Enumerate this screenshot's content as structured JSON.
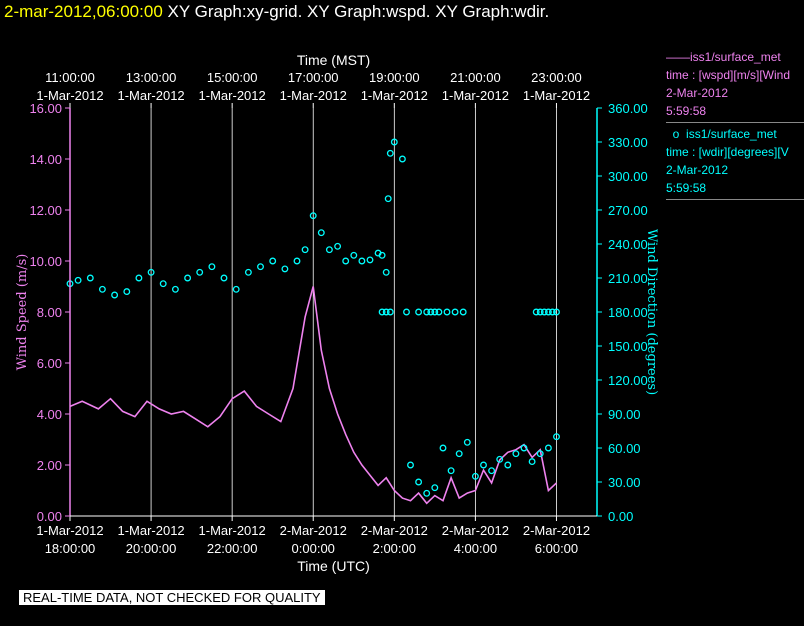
{
  "header": {
    "timestamp": "2-mar-2012,06:00:00",
    "graphs": "XY Graph:xy-grid.  XY Graph:wspd.  XY Graph:wdir."
  },
  "legend": {
    "wspd": {
      "marker": "——",
      "source": "iss1/surface_met",
      "var": "time : [wspd][m/s][Wind",
      "date": "2-Mar-2012",
      "time": "5:59:58"
    },
    "wdir": {
      "marker": "o",
      "source": "iss1/surface_met",
      "var": "time : [wdir][degrees][V",
      "date": "2-Mar-2012",
      "time": "5:59:58"
    }
  },
  "quality_note": "REAL-TIME DATA, NOT CHECKED FOR QUALITY",
  "colors": {
    "wspd": "#ee82ee",
    "wdir": "#00ffff",
    "grid": "#ffffff",
    "axes": "#ffffff"
  },
  "chart_data": {
    "type": "line",
    "x_bottom_label": "Time (UTC)",
    "x_top_label": "Time (MST)",
    "xlim_hours_utc": [
      18,
      31
    ],
    "bottom_ticks": [
      {
        "h": 18,
        "date": "1-Mar-2012",
        "time": "18:00:00"
      },
      {
        "h": 20,
        "date": "1-Mar-2012",
        "time": "20:00:00"
      },
      {
        "h": 22,
        "date": "1-Mar-2012",
        "time": "22:00:00"
      },
      {
        "h": 24,
        "date": "2-Mar-2012",
        "time": "0:00:00"
      },
      {
        "h": 26,
        "date": "2-Mar-2012",
        "time": "2:00:00"
      },
      {
        "h": 28,
        "date": "2-Mar-2012",
        "time": "4:00:00"
      },
      {
        "h": 30,
        "date": "2-Mar-2012",
        "time": "6:00:00"
      }
    ],
    "top_ticks": [
      {
        "h": 18,
        "time": "11:00:00",
        "date": "1-Mar-2012"
      },
      {
        "h": 20,
        "time": "13:00:00",
        "date": "1-Mar-2012"
      },
      {
        "h": 22,
        "time": "15:00:00",
        "date": "1-Mar-2012"
      },
      {
        "h": 24,
        "time": "17:00:00",
        "date": "1-Mar-2012"
      },
      {
        "h": 26,
        "time": "19:00:00",
        "date": "1-Mar-2012"
      },
      {
        "h": 28,
        "time": "21:00:00",
        "date": "1-Mar-2012"
      },
      {
        "h": 30,
        "time": "23:00:00",
        "date": "1-Mar-2012"
      }
    ],
    "y_left": {
      "label": "Wind Speed (m/s)",
      "lim": [
        0,
        16
      ],
      "ticks": [
        "0.00",
        "2.00",
        "4.00",
        "6.00",
        "8.00",
        "10.00",
        "12.00",
        "14.00",
        "16.00"
      ]
    },
    "y_right": {
      "label": "Wind Direction (degrees)",
      "lim": [
        0,
        360
      ],
      "ticks": [
        "0.00",
        "30.00",
        "60.00",
        "90.00",
        "120.00",
        "150.00",
        "180.00",
        "210.00",
        "240.00",
        "270.00",
        "300.00",
        "330.00",
        "360.00"
      ]
    },
    "grid": "vertical",
    "series": [
      {
        "name": "wspd",
        "style": "line",
        "x": [
          17.9,
          18.3,
          18.7,
          19.0,
          19.3,
          19.6,
          19.9,
          20.2,
          20.5,
          20.8,
          21.1,
          21.4,
          21.7,
          22.0,
          22.3,
          22.6,
          22.9,
          23.2,
          23.5,
          23.8,
          24.0,
          24.2,
          24.4,
          24.6,
          24.8,
          25.0,
          25.2,
          25.4,
          25.6,
          25.8,
          26.0,
          26.2,
          26.4,
          26.6,
          26.8,
          27.0,
          27.2,
          27.4,
          27.6,
          27.8,
          28.0,
          28.2,
          28.4,
          28.6,
          28.8,
          29.0,
          29.2,
          29.4,
          29.6,
          29.8,
          30.0
        ],
        "y": [
          4.3,
          4.5,
          4.2,
          4.6,
          4.1,
          3.9,
          4.5,
          4.2,
          4.0,
          4.1,
          3.8,
          3.5,
          3.9,
          4.6,
          4.9,
          4.3,
          4.0,
          3.7,
          5.0,
          7.8,
          9.0,
          6.5,
          5.0,
          4.0,
          3.2,
          2.5,
          2.0,
          1.6,
          1.2,
          1.5,
          1.0,
          0.7,
          0.6,
          0.9,
          0.5,
          0.8,
          0.6,
          1.5,
          0.7,
          0.9,
          1.0,
          1.8,
          1.3,
          2.2,
          2.5,
          2.6,
          2.8,
          2.3,
          2.6,
          1.0,
          1.3
        ]
      },
      {
        "name": "wdir",
        "style": "scatter",
        "x": [
          17.9,
          18.2,
          18.5,
          18.8,
          19.1,
          19.4,
          19.7,
          20.0,
          20.3,
          20.6,
          20.9,
          21.2,
          21.5,
          21.8,
          22.1,
          22.4,
          22.7,
          23.0,
          23.3,
          23.6,
          23.8,
          24.0,
          24.2,
          24.4,
          24.6,
          24.8,
          25.0,
          25.2,
          25.4,
          25.6,
          25.7,
          25.8,
          25.85,
          25.9,
          26.0,
          26.2,
          26.4,
          26.6,
          26.8,
          27.0,
          27.2,
          27.4,
          27.6,
          27.8,
          28.0,
          28.2,
          28.4,
          28.6,
          28.8,
          29.0,
          29.2,
          29.4,
          29.6,
          29.8,
          30.0
        ],
        "y": [
          205,
          208,
          210,
          200,
          195,
          198,
          210,
          215,
          205,
          200,
          210,
          215,
          220,
          210,
          200,
          215,
          220,
          225,
          218,
          225,
          235,
          265,
          250,
          235,
          238,
          225,
          230,
          225,
          226,
          232,
          230,
          215,
          280,
          320,
          330,
          315,
          45,
          30,
          20,
          25,
          60,
          40,
          55,
          65,
          35,
          45,
          40,
          50,
          45,
          55,
          60,
          48,
          55,
          60,
          70
        ]
      },
      {
        "name": "wdir-180-cluster",
        "style": "scatter",
        "x": [
          25.7,
          25.8,
          25.9,
          26.3,
          26.6,
          26.8,
          26.9,
          27.0,
          27.1,
          27.3,
          27.5,
          27.7,
          29.5,
          29.6,
          29.7,
          29.8,
          29.9,
          30.0
        ],
        "y": [
          180,
          180,
          180,
          180,
          180,
          180,
          180,
          180,
          180,
          180,
          180,
          180,
          180,
          180,
          180,
          180,
          180,
          180
        ]
      }
    ]
  }
}
